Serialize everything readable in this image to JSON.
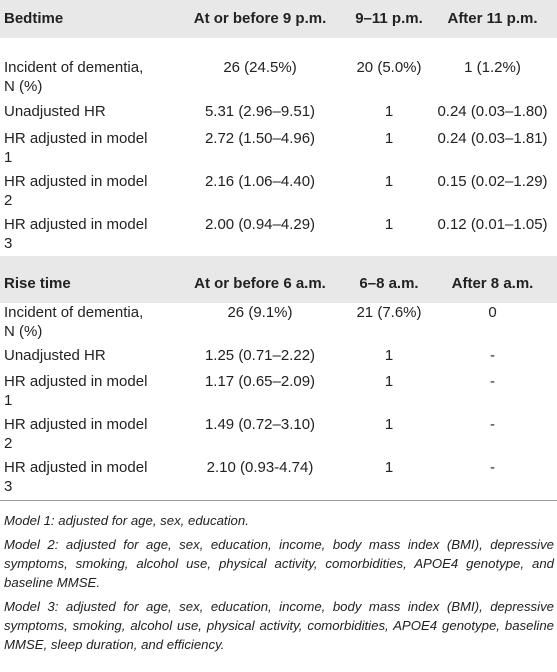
{
  "sections": [
    {
      "header": [
        "Bedtime",
        "At or before 9 p.m.",
        "9–11 p.m.",
        "After 11 p.m."
      ],
      "rows": [
        [
          "Incident of dementia, N (%)",
          "26 (24.5%)",
          "20 (5.0%)",
          "1 (1.2%)"
        ],
        [
          "Unadjusted HR",
          "5.31 (2.96–9.51)",
          "1",
          "0.24 (0.03–1.80)"
        ],
        [
          "HR adjusted in model 1",
          "2.72 (1.50–4.96)",
          "1",
          "0.24 (0.03–1.81)"
        ],
        [
          "HR adjusted in model 2",
          "2.16 (1.06–4.40)",
          "1",
          "0.15 (0.02–1.29)"
        ],
        [
          "HR adjusted in model 3",
          "2.00 (0.94–4.29)",
          "1",
          "0.12 (0.01–1.05)"
        ]
      ]
    },
    {
      "header": [
        "Rise time",
        "At or before 6 a.m.",
        "6–8 a.m.",
        "After 8 a.m."
      ],
      "rows": [
        [
          "Incident of dementia, N (%)",
          "26 (9.1%)",
          "21 (7.6%)",
          "0"
        ],
        [
          "Unadjusted HR",
          "1.25 (0.71–2.22)",
          "1",
          "-"
        ],
        [
          "HR adjusted in model 1",
          "1.17 (0.65–2.09)",
          "1",
          "-"
        ],
        [
          "HR adjusted in model 2",
          "1.49 (0.72–3.10)",
          "1",
          "-"
        ],
        [
          "HR adjusted in model 3",
          "2.10 (0.93-4.74)",
          "1",
          "-"
        ]
      ]
    }
  ],
  "footnotes": [
    "Model 1: adjusted for age, sex, education.",
    "Model 2: adjusted for age, sex, education, income, body mass index (BMI), depressive symptoms, smoking, alcohol use, physical activity, comorbidities, APOE4 genotype, and baseline MMSE.",
    "Model 3: adjusted for age, sex, education, income, body mass index (BMI), depressive symptoms, smoking, alcohol use, physical activity, comorbidities, APOE4 genotype, baseline MMSE, sleep duration, and efficiency."
  ]
}
